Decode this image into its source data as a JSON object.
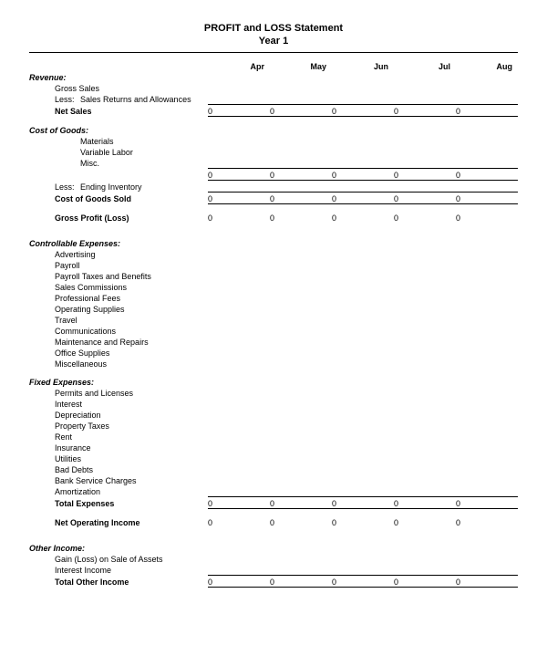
{
  "doc": {
    "title_line1": "PROFIT and LOSS Statement",
    "title_line2": "Year 1",
    "months": [
      "Apr",
      "May",
      "Jun",
      "Jul",
      "Aug"
    ],
    "zero": "0",
    "sections": {
      "revenue": {
        "header": "Revenue:",
        "gross_sales": "Gross Sales",
        "less": "Less:",
        "returns": "Sales Returns and Allowances",
        "net_sales": "Net Sales"
      },
      "cogs": {
        "header": "Cost of Goods:",
        "materials": "Materials",
        "variable_labor": "Variable Labor",
        "misc": "Misc.",
        "less": "Less:",
        "ending_inventory": "Ending Inventory",
        "cogs_sold": "Cost of Goods Sold",
        "gross_profit": "Gross Profit (Loss)"
      },
      "controllable": {
        "header": "Controllable Expenses:",
        "items": [
          "Advertising",
          "Payroll",
          "Payroll Taxes and Benefits",
          "Sales Commissions",
          "Professional Fees",
          "Operating Supplies",
          "Travel",
          "Communications",
          "Maintenance and Repairs",
          "Office Supplies",
          "Miscellaneous"
        ]
      },
      "fixed": {
        "header": "Fixed Expenses:",
        "items": [
          "Permits and Licenses",
          "Interest",
          "Depreciation",
          "Property Taxes",
          "Rent",
          "Insurance",
          "Utilities",
          "Bad Debts",
          "Bank Service Charges",
          "Amortization"
        ],
        "total_expenses": "Total Expenses",
        "net_op_income": "Net Operating Income"
      },
      "other": {
        "header": "Other Income:",
        "gain_loss": "Gain (Loss) on Sale of Assets",
        "interest_income": "Interest Income",
        "total_other": "Total Other Income"
      }
    }
  }
}
